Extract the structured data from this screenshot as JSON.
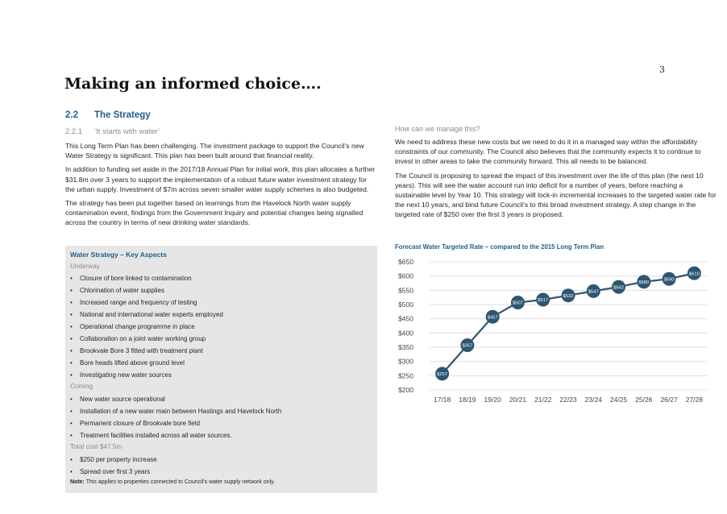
{
  "page_number": "3",
  "heading": "Making an informed choice….",
  "section": {
    "number": "2.2",
    "title": "The Strategy"
  },
  "subsection": {
    "number": "2.2.1",
    "title": "‘It starts with water’"
  },
  "left_paragraphs": [
    "This Long Term Plan has been challenging. The investment package to support the Council’s new Water Strategy is significant. This plan has been built around that financial reality.",
    "In addition to funding set aside in the 2017/18 Annual Plan for initial work, this plan allocates a further $31.8m over 3 years to support the implementation of a robust future water investment strategy for the urban supply. Investment of $7m across seven smaller water supply schemes is also budgeted.",
    "The strategy has been put together based on learnings from the Havelock North water supply contamination event, findings from the Government Inquiry and potential changes being signalled across the country in terms of new drinking water standards."
  ],
  "box": {
    "title": "Water Strategy – Key Aspects",
    "underway_label": "Underway",
    "underway": [
      "Closure of bore linked to contamination",
      "Chlorination of water supplies",
      "Increased range and frequency of testing",
      "National and international water experts employed",
      "Operational change programme in place",
      "Collaboration on a joint water working group",
      "Brookvale Bore 3 fitted with treatment plant",
      "Bore heads lifted above ground level",
      "Investigating new water sources"
    ],
    "coming_label": "Coming",
    "coming": [
      "New water source operational",
      "Installation of a new water main between Hastings and Havelock North",
      "Permanent closure of Brookvale bore field",
      "Treatment facilities installed across all water sources."
    ],
    "total_label": "Total cost $47.5m",
    "total": [
      "$250 per property increase",
      "Spread over first 3 years"
    ],
    "note_label": "Note:",
    "note_text": " This applies to properties connected to Council’s water supply network only."
  },
  "right_question": "How can we manage this?",
  "right_paragraphs": [
    "We need to address these new costs but we need to do it in a managed way within the affordability constraints of our community. The Council also believes that the community expects it to continue to invest in other areas to take the community forward. This all needs to be balanced.",
    "The Council is proposing to spread the impact of this investment over the life of this plan (the next 10 years). This will see the water account run into deficit for a number of years, before reaching a sustainable level by Year 10. This strategy will lock-in incremental increases to the targeted water rate for the next 10 years, and bind future Council’s to this broad investment strategy. A step change in the targeted rate of $250 over the first 3 years is proposed."
  ],
  "chart_data": {
    "type": "line",
    "title": "Forecast Water Targeted Rate – compared to the 2015 Long Term Plan",
    "categories": [
      "17/18",
      "18/19",
      "19/20",
      "20/21",
      "21/22",
      "22/23",
      "23/24",
      "24/25",
      "25/26",
      "26/27",
      "27/28"
    ],
    "values": [
      257,
      357,
      457,
      507,
      517,
      532,
      547,
      562,
      580,
      590,
      610
    ],
    "data_labels": [
      "$257",
      "$357",
      "$457",
      "$507",
      "$517",
      "$532",
      "$547",
      "$562",
      "$580",
      "$590",
      "$610"
    ],
    "yticks": [
      "$200",
      "$250",
      "$300",
      "$350",
      "$400",
      "$450",
      "$500",
      "$550",
      "$600",
      "$650"
    ],
    "ylim": [
      200,
      650
    ],
    "grid": true,
    "color": "#2e5670"
  }
}
